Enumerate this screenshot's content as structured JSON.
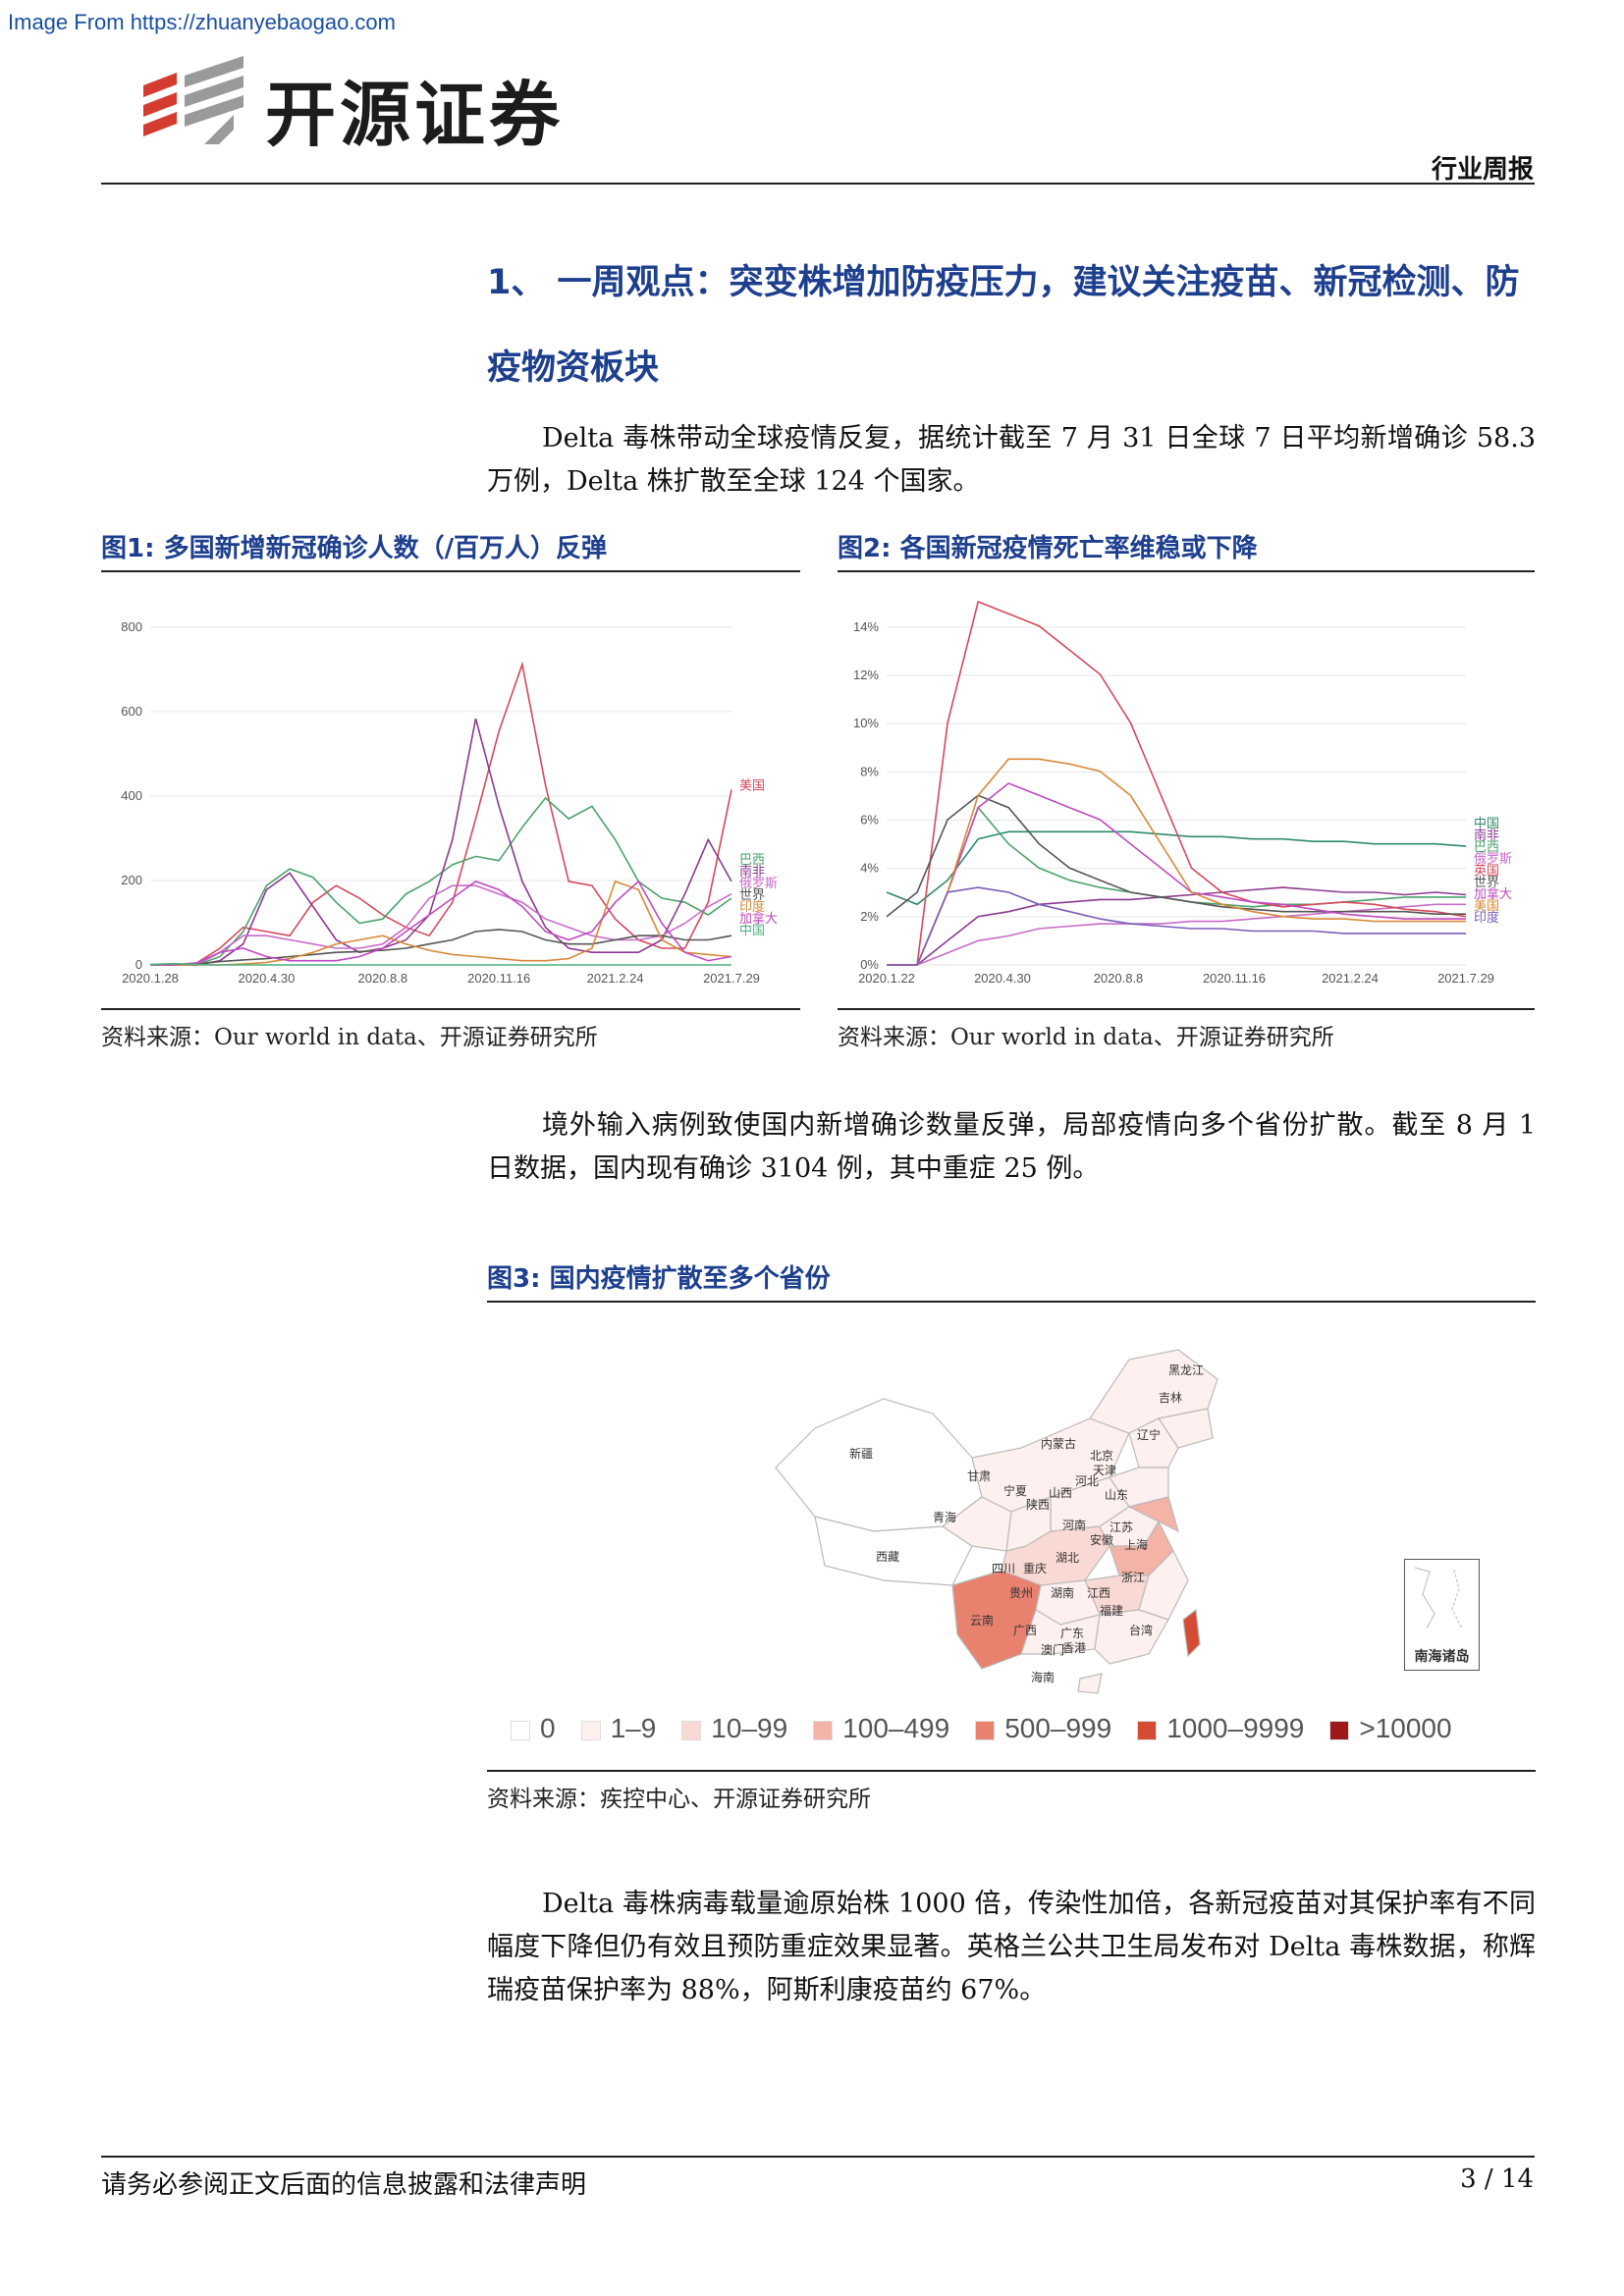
{
  "source_url": "Image From https://zhuanyebaogao.com",
  "brand": {
    "name": "开源证券",
    "colors": {
      "red": "#d43c2f",
      "gray": "#9a9a9a"
    }
  },
  "header_tag": "行业周报",
  "section": {
    "title": "1、 一周观点：突变株增加防疫压力，建议关注疫苗、新冠检测、防疫物资板块"
  },
  "paragraphs": {
    "p1": "Delta 毒株带动全球疫情反复，据统计截至 7 月 31 日全球 7 日平均新增确诊 58.3 万例，Delta 株扩散至全球 124 个国家。",
    "p2": "境外输入病例致使国内新增确诊数量反弹，局部疫情向多个省份扩散。截至 8 月 1 日数据，国内现有确诊 3104 例，其中重症 25 例。",
    "p3": "Delta 毒株病毒载量逾原始株 1000 倍，传染性加倍，各新冠疫苗对其保护率有不同幅度下降但仍有效且预防重症效果显著。英格兰公共卫生局发布对 Delta 毒株数据，称辉瑞疫苗保护率为 88%，阿斯利康疫苗约 67%。"
  },
  "figures": {
    "fig1": {
      "label": "图1:",
      "title": "多国新增新冠确诊人数（/百万人）反弹",
      "source": "资料来源：Our world in data、开源证券研究所"
    },
    "fig2": {
      "label": "图2:",
      "title": "各国新冠疫情死亡率维稳或下降",
      "source": "资料来源：Our world in data、开源证券研究所"
    },
    "fig3": {
      "label": "图3:",
      "title": "国内疫情扩散至多个省份",
      "source": "资料来源：疾控中心、开源证券研究所"
    }
  },
  "chart_data": [
    {
      "type": "line",
      "x_ticks": [
        "2020.1.28",
        "2020.4.30",
        "2020.8.8",
        "2020.11.16",
        "2021.2.24",
        "2021.7.29"
      ],
      "y_ticks": [
        "0",
        "200",
        "400",
        "600",
        "800"
      ],
      "ylim": [
        0,
        870
      ],
      "series": [
        {
          "name": "美国",
          "color": "#d4495c",
          "values": [
            0,
            0,
            5,
            40,
            90,
            80,
            70,
            150,
            190,
            160,
            120,
            90,
            70,
            150,
            350,
            560,
            720,
            430,
            200,
            190,
            110,
            60,
            40,
            40,
            150,
            420
          ]
        },
        {
          "name": "巴西",
          "color": "#4ba36b",
          "values": [
            0,
            0,
            0,
            20,
            80,
            190,
            230,
            210,
            150,
            100,
            110,
            170,
            200,
            240,
            260,
            250,
            330,
            400,
            350,
            380,
            300,
            200,
            160,
            150,
            120,
            160
          ]
        },
        {
          "name": "南非",
          "color": "#8b3a8f",
          "values": [
            0,
            0,
            0,
            10,
            50,
            180,
            220,
            140,
            60,
            30,
            40,
            60,
            120,
            300,
            590,
            380,
            200,
            90,
            40,
            30,
            30,
            30,
            60,
            170,
            300,
            200
          ]
        },
        {
          "name": "俄罗斯",
          "color": "#c86bc8",
          "values": [
            0,
            0,
            0,
            30,
            70,
            70,
            60,
            50,
            40,
            40,
            50,
            90,
            160,
            190,
            190,
            170,
            150,
            110,
            90,
            70,
            60,
            60,
            70,
            100,
            140,
            170
          ]
        },
        {
          "name": "世界",
          "color": "#555555",
          "values": [
            0,
            0,
            2,
            8,
            12,
            15,
            20,
            25,
            30,
            32,
            35,
            40,
            50,
            60,
            80,
            85,
            80,
            60,
            50,
            50,
            60,
            70,
            70,
            60,
            60,
            70
          ]
        },
        {
          "name": "印度",
          "color": "#d8893a",
          "values": [
            0,
            0,
            0,
            0,
            2,
            6,
            15,
            30,
            50,
            60,
            70,
            50,
            35,
            25,
            20,
            15,
            10,
            10,
            15,
            40,
            200,
            180,
            60,
            30,
            25,
            20
          ]
        },
        {
          "name": "加拿大",
          "color": "#c04ac0",
          "values": [
            0,
            0,
            5,
            30,
            40,
            20,
            10,
            10,
            10,
            20,
            40,
            80,
            120,
            160,
            200,
            180,
            140,
            80,
            60,
            80,
            150,
            200,
            100,
            30,
            10,
            20
          ]
        },
        {
          "name": "中国",
          "color": "#4caf7d",
          "values": [
            1,
            3,
            1,
            0,
            0,
            0,
            0,
            0,
            0,
            0,
            0,
            0,
            0,
            0,
            0,
            0,
            0,
            0,
            0,
            0,
            0,
            0,
            0,
            0,
            0,
            0
          ]
        }
      ]
    },
    {
      "type": "line",
      "x_ticks": [
        "2020.1.22",
        "2020.4.30",
        "2020.8.8",
        "2020.11.16",
        "2021.2.24",
        "2021.7.29"
      ],
      "y_ticks": [
        "0%",
        "2%",
        "4%",
        "6%",
        "8%",
        "10%",
        "12%",
        "14%"
      ],
      "ylim": [
        0,
        15
      ],
      "series": [
        {
          "name": "中国",
          "color": "#2e8b6a",
          "values": [
            3,
            2.5,
            3.5,
            5.2,
            5.5,
            5.5,
            5.5,
            5.5,
            5.5,
            5.4,
            5.3,
            5.3,
            5.2,
            5.2,
            5.1,
            5.1,
            5.0,
            5.0,
            5.0,
            4.9
          ]
        },
        {
          "name": "南非",
          "color": "#8b3a8f",
          "values": [
            0,
            0,
            1,
            2,
            2.2,
            2.5,
            2.6,
            2.7,
            2.7,
            2.8,
            2.9,
            3.0,
            3.1,
            3.2,
            3.1,
            3.0,
            3.0,
            2.9,
            3.0,
            2.9
          ]
        },
        {
          "name": "巴西",
          "color": "#4ba36b",
          "values": [
            0,
            0,
            3,
            6.5,
            5,
            4,
            3.5,
            3.2,
            3.0,
            2.8,
            2.6,
            2.5,
            2.4,
            2.5,
            2.5,
            2.6,
            2.7,
            2.8,
            2.8,
            2.8
          ]
        },
        {
          "name": "俄罗斯",
          "color": "#c86bc8",
          "values": [
            0,
            0,
            0.5,
            1,
            1.2,
            1.5,
            1.6,
            1.7,
            1.7,
            1.7,
            1.8,
            1.8,
            1.9,
            2.0,
            2.1,
            2.2,
            2.3,
            2.4,
            2.5,
            2.5
          ]
        },
        {
          "name": "英国",
          "color": "#d4495c",
          "values": [
            0,
            0,
            10,
            15,
            14.5,
            14,
            13,
            12,
            10,
            7,
            4,
            3,
            2.6,
            2.4,
            2.5,
            2.6,
            2.5,
            2.3,
            2.2,
            2.0
          ]
        },
        {
          "name": "世界",
          "color": "#555555",
          "values": [
            2,
            3,
            6,
            7,
            6.5,
            5,
            4,
            3.5,
            3,
            2.8,
            2.6,
            2.4,
            2.3,
            2.2,
            2.2,
            2.2,
            2.2,
            2.2,
            2.1,
            2.1
          ]
        },
        {
          "name": "加拿大",
          "color": "#c04ac0",
          "values": [
            0,
            0,
            3,
            6.5,
            7.5,
            7,
            6.5,
            6,
            5,
            4,
            3,
            2.8,
            2.6,
            2.5,
            2.3,
            2.1,
            2.0,
            1.9,
            1.9,
            1.9
          ]
        },
        {
          "name": "美国",
          "color": "#d8893a",
          "values": [
            0,
            0,
            3,
            7,
            8.5,
            8.5,
            8.3,
            8,
            7,
            5,
            3,
            2.5,
            2.2,
            2.0,
            1.9,
            1.9,
            1.8,
            1.8,
            1.8,
            1.8
          ]
        },
        {
          "name": "印度",
          "color": "#7a5cb8",
          "values": [
            0,
            0,
            3,
            3.2,
            3.0,
            2.5,
            2.2,
            1.9,
            1.7,
            1.6,
            1.5,
            1.5,
            1.4,
            1.4,
            1.4,
            1.3,
            1.3,
            1.3,
            1.3,
            1.3
          ]
        }
      ]
    }
  ],
  "map": {
    "provinces": [
      "黑龙江",
      "吉林",
      "辽宁",
      "内蒙古",
      "北京",
      "天津",
      "河北",
      "山东",
      "新疆",
      "甘肃",
      "宁夏",
      "山西",
      "陕西",
      "青海",
      "河南",
      "江苏",
      "上海",
      "安徽",
      "西藏",
      "四川",
      "重庆",
      "湖北",
      "浙江",
      "贵州",
      "湖南",
      "江西",
      "福建",
      "云南",
      "广西",
      "广东",
      "台湾",
      "澳门",
      "香港",
      "海南"
    ],
    "inset_label": "南海诸岛",
    "legend": [
      {
        "label": "0",
        "color": "#ffffff"
      },
      {
        "label": "1–9",
        "color": "#fdf0ee"
      },
      {
        "label": "10–99",
        "color": "#f9d9d3"
      },
      {
        "label": "100–499",
        "color": "#f3b3a6"
      },
      {
        "label": "500–999",
        "color": "#e8826f"
      },
      {
        "label": "1000–9999",
        "color": "#d54b34"
      },
      {
        "label": ">10000",
        "color": "#9e1a1a"
      }
    ]
  },
  "footer": {
    "disclaimer": "请务必参阅正文后面的信息披露和法律声明",
    "page": "3 / 14"
  }
}
